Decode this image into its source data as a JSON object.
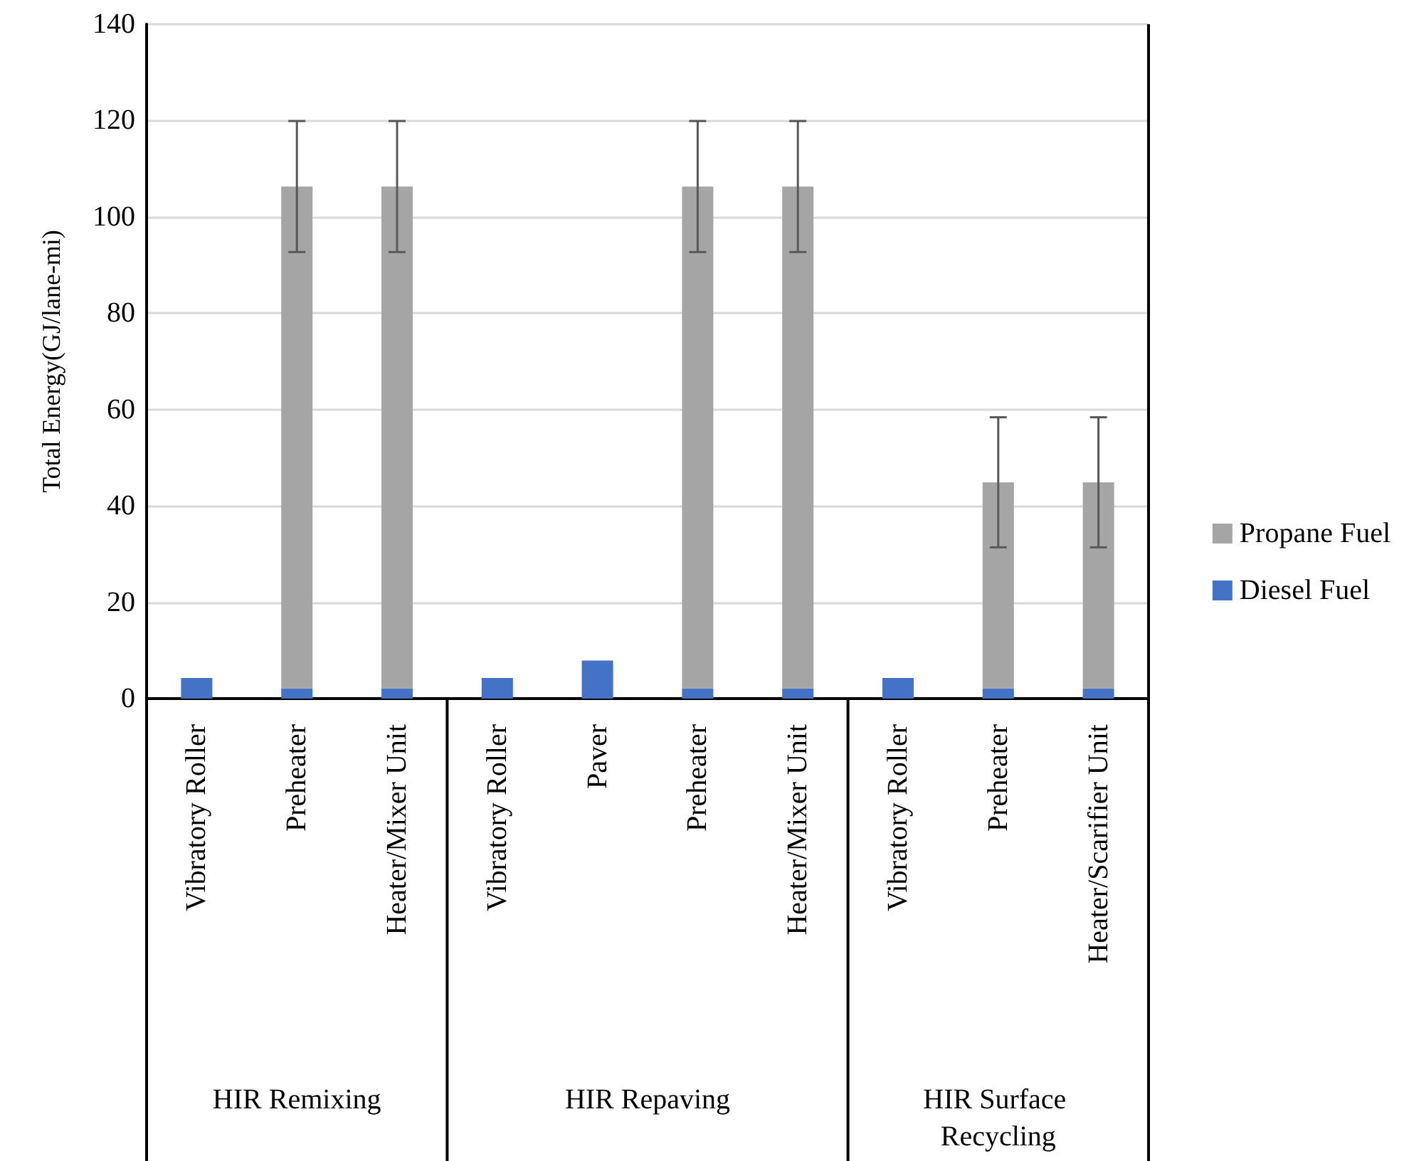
{
  "chart_data": {
    "type": "bar",
    "ylabel": "Total Energy(GJ/lane-mi)",
    "categories": [
      "Vibratory Roller",
      "Preheater",
      "Heater/Mixer Unit",
      "Vibratory Roller",
      "Paver",
      "Preheater",
      "Heater/Mixer Unit",
      "Vibratory Roller",
      "Preheater",
      "Heater/Scarifier Unit"
    ],
    "series": [
      {
        "name": "Diesel Fuel",
        "color": "#4472c4",
        "values": [
          4.3,
          2.1,
          2.1,
          4.3,
          7.9,
          2.1,
          2.1,
          4.3,
          2.1,
          2.1
        ]
      },
      {
        "name": "Propane Fuel",
        "color": "#a5a5a5",
        "values": [
          null,
          104.2,
          104.2,
          null,
          null,
          104.2,
          104.2,
          null,
          42.8,
          42.8
        ],
        "errors": [
          null,
          13.6,
          13.6,
          null,
          null,
          13.6,
          13.6,
          null,
          13.5,
          13.5
        ]
      }
    ],
    "stacked": true,
    "ylim": [
      0,
      140
    ],
    "yticks": [
      0,
      20,
      40,
      60,
      80,
      100,
      120,
      140
    ],
    "grid": "y",
    "legend": "right",
    "annotations": [
      "HIR Remixing",
      "HIR Repaving",
      "HIR Surface Recycling"
    ]
  }
}
